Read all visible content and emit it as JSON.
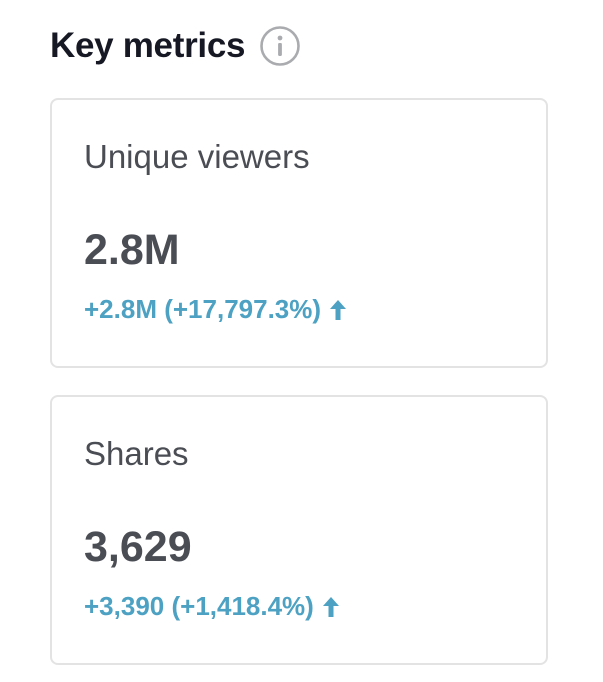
{
  "header": {
    "title": "Key metrics",
    "info_icon": "info-circle-icon"
  },
  "metrics": [
    {
      "label": "Unique viewers",
      "value": "2.8M",
      "change": "+2.8M (+17,797.3%)",
      "trend_icon": "arrow-up-icon"
    },
    {
      "label": "Shares",
      "value": "3,629",
      "change": "+3,390 (+1,418.4%)",
      "trend_icon": "arrow-up-icon"
    }
  ],
  "colors": {
    "title": "#161823",
    "text": "#4b4d55",
    "positive": "#4da1c2",
    "border": "#e3e3e4",
    "icon": "#a9abae"
  }
}
